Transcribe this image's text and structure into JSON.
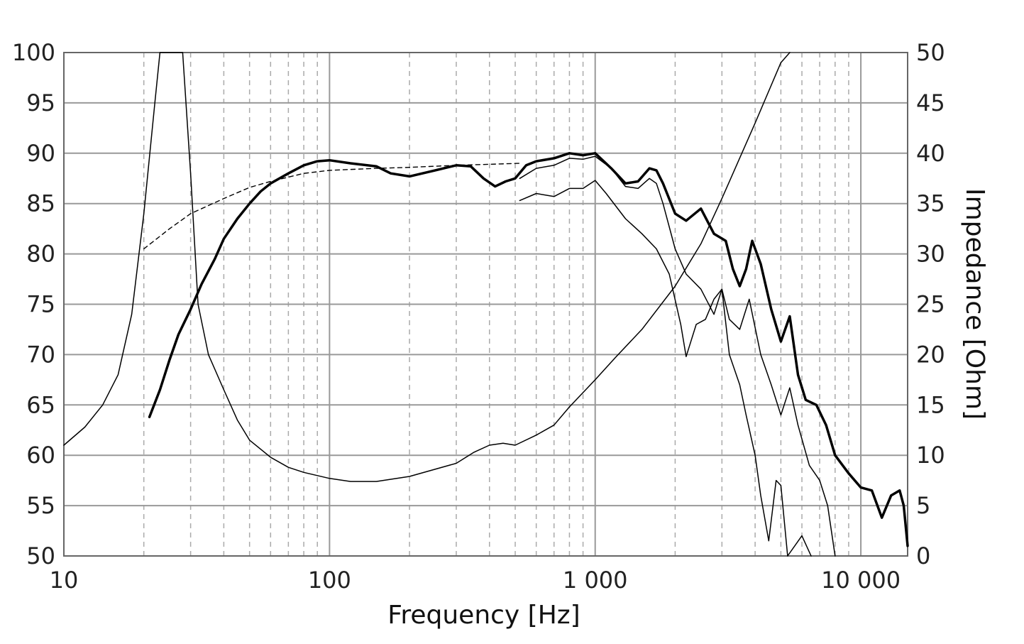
{
  "chart_data": {
    "type": "line",
    "title": "",
    "xlabel": "Frequency [Hz]",
    "ylabel_left": "",
    "ylabel_right": "Impedance [Ohm]",
    "x_scale": "log",
    "xlim": [
      10,
      15000
    ],
    "ylim_left": [
      50,
      100
    ],
    "ylim_right": [
      0,
      50
    ],
    "grid": true,
    "legend": "none",
    "x_ticks": [
      {
        "value": 10,
        "label": "10"
      },
      {
        "value": 100,
        "label": "100"
      },
      {
        "value": 1000,
        "label": "1 000"
      },
      {
        "value": 10000,
        "label": "10 000"
      }
    ],
    "y_ticks_left": [
      "50",
      "55",
      "60",
      "65",
      "70",
      "75",
      "80",
      "85",
      "90",
      "95",
      "100"
    ],
    "y_ticks_right": [
      "0",
      "5",
      "10",
      "15",
      "20",
      "25",
      "30",
      "35",
      "40",
      "45",
      "50"
    ],
    "colors": {
      "line": "#000000",
      "grid_major": "#999999",
      "grid_minor": "#aaaaaa"
    },
    "series": [
      {
        "axis": "left",
        "style": "bold",
        "points": [
          [
            21,
            63.8
          ],
          [
            23,
            66.5
          ],
          [
            25,
            69.5
          ],
          [
            27,
            72
          ],
          [
            30,
            74.5
          ],
          [
            33,
            77
          ],
          [
            37,
            79.5
          ],
          [
            40,
            81.5
          ],
          [
            45,
            83.5
          ],
          [
            50,
            85
          ],
          [
            55,
            86.2
          ],
          [
            60,
            87
          ],
          [
            70,
            88
          ],
          [
            80,
            88.8
          ],
          [
            90,
            89.2
          ],
          [
            100,
            89.3
          ],
          [
            120,
            89
          ],
          [
            150,
            88.7
          ],
          [
            170,
            88
          ],
          [
            200,
            87.7
          ],
          [
            250,
            88.3
          ],
          [
            300,
            88.8
          ],
          [
            340,
            88.7
          ],
          [
            380,
            87.5
          ],
          [
            420,
            86.7
          ],
          [
            460,
            87.2
          ],
          [
            500,
            87.5
          ],
          [
            550,
            88.8
          ],
          [
            600,
            89.2
          ],
          [
            700,
            89.5
          ],
          [
            800,
            90
          ],
          [
            900,
            89.8
          ],
          [
            1000,
            90
          ],
          [
            1150,
            88.5
          ],
          [
            1300,
            87
          ],
          [
            1450,
            87.2
          ],
          [
            1600,
            88.5
          ],
          [
            1700,
            88.3
          ],
          [
            1800,
            87
          ],
          [
            2000,
            84
          ],
          [
            2200,
            83.3
          ],
          [
            2500,
            84.5
          ],
          [
            2800,
            82
          ],
          [
            3100,
            81.3
          ],
          [
            3300,
            78.5
          ],
          [
            3500,
            76.8
          ],
          [
            3700,
            78.5
          ],
          [
            3900,
            81.3
          ],
          [
            4200,
            79
          ],
          [
            4600,
            74.5
          ],
          [
            5000,
            71.3
          ],
          [
            5400,
            73.8
          ],
          [
            5800,
            68
          ],
          [
            6200,
            65.5
          ],
          [
            6800,
            65
          ],
          [
            7400,
            63
          ],
          [
            8000,
            60
          ],
          [
            9000,
            58.2
          ],
          [
            10000,
            56.8
          ],
          [
            11000,
            56.5
          ],
          [
            12000,
            53.8
          ],
          [
            13000,
            56
          ],
          [
            14000,
            56.5
          ],
          [
            14500,
            55
          ],
          [
            15000,
            51
          ]
        ]
      },
      {
        "axis": "left",
        "style": "dashed",
        "points": [
          [
            20,
            80.5
          ],
          [
            25,
            82.5
          ],
          [
            30,
            84
          ],
          [
            40,
            85.5
          ],
          [
            50,
            86.6
          ],
          [
            60,
            87.2
          ],
          [
            80,
            88
          ],
          [
            100,
            88.3
          ],
          [
            150,
            88.5
          ],
          [
            200,
            88.6
          ],
          [
            300,
            88.8
          ],
          [
            400,
            88.9
          ],
          [
            520,
            89
          ]
        ]
      },
      {
        "axis": "left",
        "style": "thin",
        "points": [
          [
            520,
            87.5
          ],
          [
            600,
            88.5
          ],
          [
            700,
            88.8
          ],
          [
            800,
            89.5
          ],
          [
            900,
            89.4
          ],
          [
            1000,
            89.7
          ],
          [
            1150,
            88.5
          ],
          [
            1300,
            86.7
          ],
          [
            1450,
            86.5
          ],
          [
            1600,
            87.5
          ],
          [
            1700,
            87
          ],
          [
            1800,
            85
          ],
          [
            2000,
            80.5
          ],
          [
            2200,
            78
          ],
          [
            2500,
            76.5
          ],
          [
            2800,
            74
          ],
          [
            3000,
            76.5
          ],
          [
            3200,
            73.5
          ],
          [
            3500,
            72.5
          ],
          [
            3800,
            75.5
          ],
          [
            4200,
            70
          ],
          [
            4600,
            67
          ],
          [
            5000,
            64
          ],
          [
            5400,
            66.7
          ],
          [
            5800,
            63
          ],
          [
            6400,
            59
          ],
          [
            7000,
            57.5
          ],
          [
            7500,
            55
          ],
          [
            8000,
            50
          ]
        ]
      },
      {
        "axis": "left",
        "style": "thin",
        "points": [
          [
            520,
            85.3
          ],
          [
            600,
            86
          ],
          [
            700,
            85.7
          ],
          [
            800,
            86.5
          ],
          [
            900,
            86.5
          ],
          [
            1000,
            87.3
          ],
          [
            1100,
            86
          ],
          [
            1300,
            83.5
          ],
          [
            1500,
            82
          ],
          [
            1700,
            80.5
          ],
          [
            1900,
            78
          ],
          [
            2100,
            73
          ],
          [
            2200,
            69.8
          ],
          [
            2400,
            73
          ],
          [
            2600,
            73.5
          ],
          [
            2800,
            75.5
          ],
          [
            3000,
            76.5
          ],
          [
            3200,
            70
          ],
          [
            3500,
            67
          ],
          [
            3700,
            64
          ],
          [
            4000,
            60
          ],
          [
            4200,
            56
          ],
          [
            4500,
            51.5
          ],
          [
            4800,
            57.5
          ],
          [
            5000,
            57
          ],
          [
            5300,
            50
          ],
          [
            6000,
            52
          ],
          [
            6500,
            50
          ]
        ]
      },
      {
        "axis": "right",
        "style": "thin",
        "points": [
          [
            10,
            11
          ],
          [
            12,
            12.8
          ],
          [
            14,
            15
          ],
          [
            16,
            18
          ],
          [
            18,
            24
          ],
          [
            20,
            34
          ],
          [
            22,
            45
          ],
          [
            23,
            50
          ],
          [
            28,
            50
          ],
          [
            30,
            38
          ],
          [
            32,
            25
          ],
          [
            35,
            20
          ],
          [
            40,
            16.5
          ],
          [
            45,
            13.5
          ],
          [
            50,
            11.5
          ],
          [
            60,
            9.8
          ],
          [
            70,
            8.8
          ],
          [
            80,
            8.3
          ],
          [
            100,
            7.7
          ],
          [
            120,
            7.4
          ],
          [
            150,
            7.4
          ],
          [
            200,
            7.9
          ],
          [
            300,
            9.2
          ],
          [
            350,
            10.3
          ],
          [
            400,
            11
          ],
          [
            450,
            11.2
          ],
          [
            500,
            11
          ],
          [
            600,
            12
          ],
          [
            700,
            13
          ],
          [
            800,
            14.8
          ],
          [
            1000,
            17.5
          ],
          [
            1200,
            19.8
          ],
          [
            1500,
            22.5
          ],
          [
            2000,
            26.8
          ],
          [
            2500,
            31
          ],
          [
            3000,
            35.5
          ],
          [
            4000,
            43
          ],
          [
            5000,
            49
          ],
          [
            5400,
            51
          ]
        ]
      }
    ]
  }
}
